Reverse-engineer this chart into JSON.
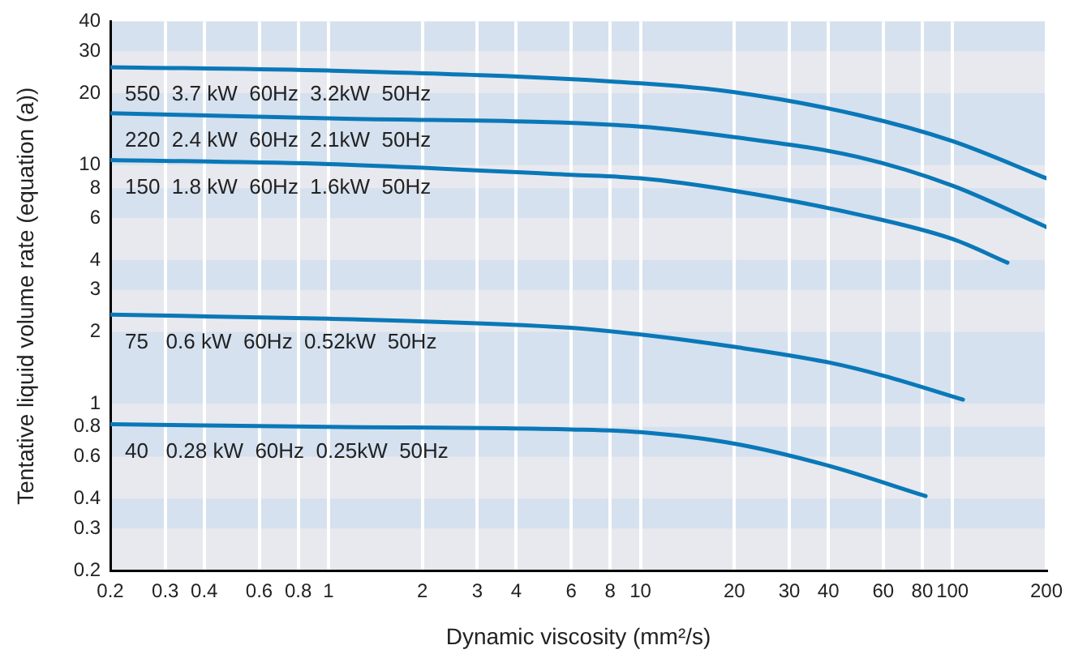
{
  "chart_data": {
    "type": "line",
    "xlabel": "Dynamic viscosity (mm²/s)",
    "ylabel": "Tentative liquid volume rate (equation (a))",
    "log": "xy",
    "grid": "x",
    "legend": false,
    "marker": "none",
    "line_style": "solid",
    "xlim": [
      0.2,
      200
    ],
    "xticks": [
      0.2,
      0.3,
      0.4,
      0.6,
      0.8,
      1,
      2,
      3,
      4,
      6,
      8,
      10,
      20,
      30,
      40,
      60,
      80,
      100,
      200
    ],
    "ylim": [
      0.2,
      40
    ],
    "yticks": [
      0.2,
      0.3,
      0.4,
      0.6,
      0.8,
      1,
      2,
      3,
      4,
      6,
      8,
      10,
      20,
      30,
      40
    ],
    "series": [
      {
        "name": "550  3.7 kW  60Hz  3.2kW  50Hz",
        "color": "#0a78b8",
        "x": [
          0.2,
          1,
          10,
          20,
          50,
          100,
          200
        ],
        "values": [
          25.7,
          24.9,
          22,
          20.2,
          16.2,
          12.6,
          8.8
        ]
      },
      {
        "name": "220  2.4 kW  60Hz  2.1kW  50Hz",
        "color": "#0a78b8",
        "x": [
          0.2,
          1,
          10,
          20,
          50,
          100,
          200
        ],
        "values": [
          16.5,
          15.7,
          14.5,
          13.1,
          10.8,
          8.2,
          5.5
        ]
      },
      {
        "name": "150  1.8 kW  60Hz  1.6kW  50Hz",
        "color": "#0a78b8",
        "x": [
          0.2,
          1,
          6,
          10,
          20,
          50,
          100,
          150
        ],
        "values": [
          10.5,
          10.1,
          9.1,
          8.8,
          7.8,
          6.2,
          4.9,
          3.9
        ]
      },
      {
        "name": "75   0.6 kW  60Hz  0.52kW  50Hz",
        "color": "#0a78b8",
        "x": [
          0.2,
          1,
          6,
          10,
          20,
          40,
          60,
          108
        ],
        "values": [
          2.36,
          2.27,
          2.08,
          1.95,
          1.73,
          1.49,
          1.31,
          1.04
        ]
      },
      {
        "name": "40   0.28 kW  60Hz  0.25kW  50Hz",
        "color": "#0a78b8",
        "x": [
          0.2,
          1,
          6,
          10,
          20,
          40,
          82
        ],
        "values": [
          0.82,
          0.8,
          0.78,
          0.76,
          0.68,
          0.55,
          0.41
        ]
      }
    ]
  }
}
